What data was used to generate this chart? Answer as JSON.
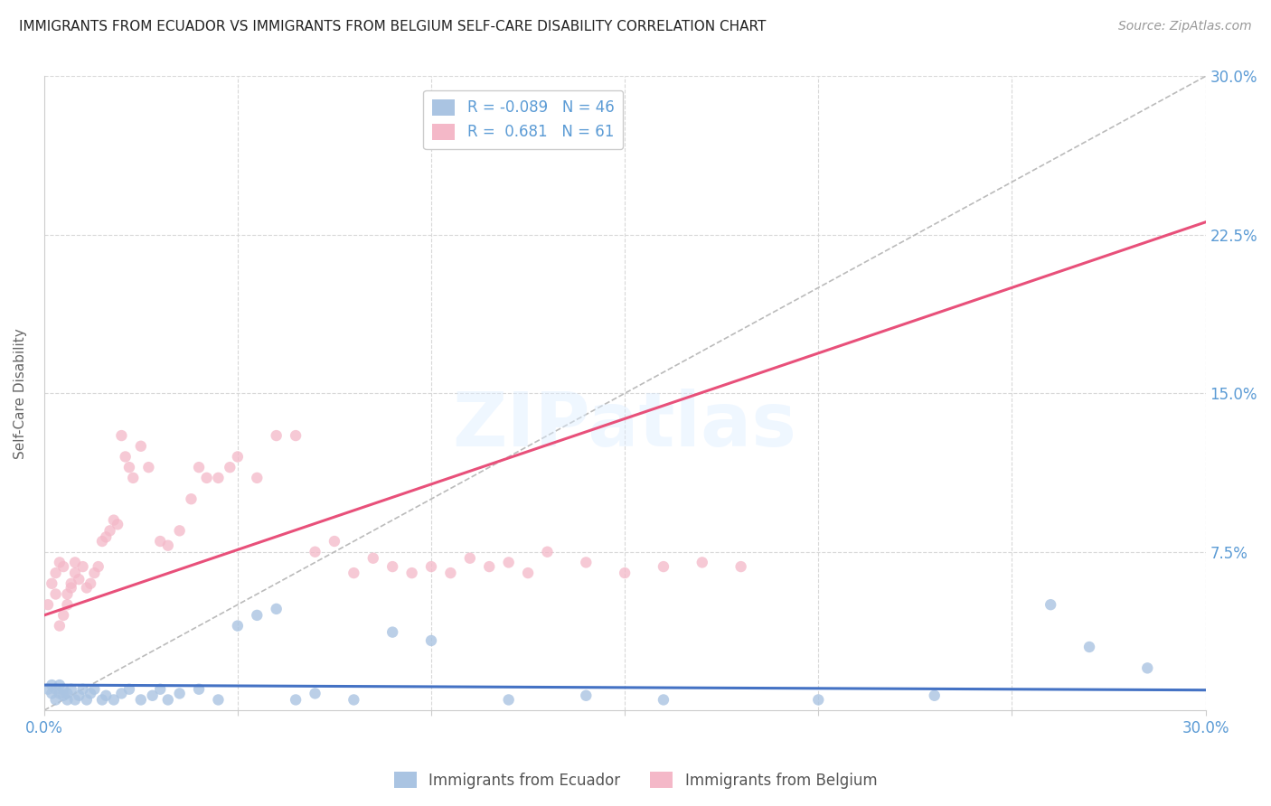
{
  "title": "IMMIGRANTS FROM ECUADOR VS IMMIGRANTS FROM BELGIUM SELF-CARE DISABILITY CORRELATION CHART",
  "source": "Source: ZipAtlas.com",
  "ylabel": "Self-Care Disability",
  "xlim": [
    0.0,
    0.3
  ],
  "ylim": [
    0.0,
    0.3
  ],
  "series": [
    {
      "name": "Immigrants from Ecuador",
      "color": "#aac4e2",
      "R": -0.089,
      "N": 46,
      "x": [
        0.001,
        0.002,
        0.002,
        0.003,
        0.003,
        0.004,
        0.004,
        0.005,
        0.005,
        0.006,
        0.006,
        0.007,
        0.008,
        0.009,
        0.01,
        0.011,
        0.012,
        0.013,
        0.015,
        0.016,
        0.018,
        0.02,
        0.022,
        0.025,
        0.028,
        0.03,
        0.032,
        0.035,
        0.04,
        0.045,
        0.05,
        0.055,
        0.06,
        0.065,
        0.07,
        0.08,
        0.09,
        0.1,
        0.12,
        0.14,
        0.16,
        0.2,
        0.23,
        0.26,
        0.27,
        0.285
      ],
      "y": [
        0.01,
        0.008,
        0.012,
        0.005,
        0.01,
        0.008,
        0.012,
        0.007,
        0.01,
        0.005,
        0.008,
        0.01,
        0.005,
        0.007,
        0.01,
        0.005,
        0.008,
        0.01,
        0.005,
        0.007,
        0.005,
        0.008,
        0.01,
        0.005,
        0.007,
        0.01,
        0.005,
        0.008,
        0.01,
        0.005,
        0.04,
        0.045,
        0.048,
        0.005,
        0.008,
        0.005,
        0.037,
        0.033,
        0.005,
        0.007,
        0.005,
        0.005,
        0.007,
        0.05,
        0.03,
        0.02
      ]
    },
    {
      "name": "Immigrants from Belgium",
      "color": "#f4b8c8",
      "R": 0.681,
      "N": 61,
      "x": [
        0.001,
        0.002,
        0.003,
        0.003,
        0.004,
        0.004,
        0.005,
        0.005,
        0.006,
        0.006,
        0.007,
        0.007,
        0.008,
        0.008,
        0.009,
        0.01,
        0.011,
        0.012,
        0.013,
        0.014,
        0.015,
        0.016,
        0.017,
        0.018,
        0.019,
        0.02,
        0.021,
        0.022,
        0.023,
        0.025,
        0.027,
        0.03,
        0.032,
        0.035,
        0.038,
        0.04,
        0.042,
        0.045,
        0.048,
        0.05,
        0.055,
        0.06,
        0.065,
        0.07,
        0.075,
        0.08,
        0.085,
        0.09,
        0.095,
        0.1,
        0.105,
        0.11,
        0.115,
        0.12,
        0.125,
        0.13,
        0.14,
        0.15,
        0.16,
        0.17,
        0.18
      ],
      "y": [
        0.05,
        0.06,
        0.055,
        0.065,
        0.04,
        0.07,
        0.045,
        0.068,
        0.05,
        0.055,
        0.058,
        0.06,
        0.065,
        0.07,
        0.062,
        0.068,
        0.058,
        0.06,
        0.065,
        0.068,
        0.08,
        0.082,
        0.085,
        0.09,
        0.088,
        0.13,
        0.12,
        0.115,
        0.11,
        0.125,
        0.115,
        0.08,
        0.078,
        0.085,
        0.1,
        0.115,
        0.11,
        0.11,
        0.115,
        0.12,
        0.11,
        0.13,
        0.13,
        0.075,
        0.08,
        0.065,
        0.072,
        0.068,
        0.065,
        0.068,
        0.065,
        0.072,
        0.068,
        0.07,
        0.065,
        0.075,
        0.07,
        0.065,
        0.068,
        0.07,
        0.068
      ]
    }
  ],
  "ecuador_trend": {
    "color": "#4472c4",
    "slope": -0.008,
    "intercept": 0.012
  },
  "belgium_trend": {
    "color": "#e8507a",
    "slope": 0.62,
    "intercept": 0.045
  },
  "diagonal_ref": {
    "color": "#bbbbbb",
    "style": "--"
  },
  "legend_text": [
    "R = -0.089   N = 46",
    "R =  0.681   N = 61"
  ],
  "bottom_legend": [
    "Immigrants from Ecuador",
    "Immigrants from Belgium"
  ],
  "background_color": "#ffffff",
  "grid_color": "#d8d8d8",
  "title_color": "#222222",
  "axis_color": "#5b9bd5",
  "watermark": "ZIPatlas"
}
